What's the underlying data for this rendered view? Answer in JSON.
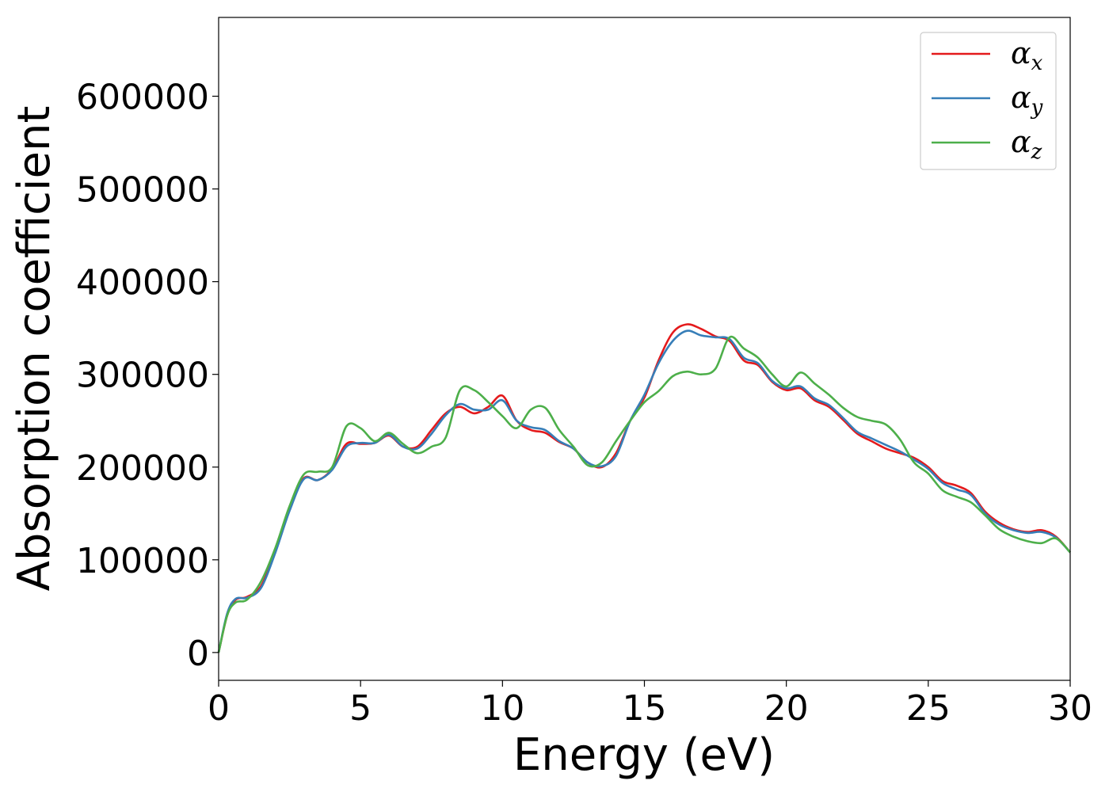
{
  "chart_data": {
    "type": "line",
    "xlabel": "Energy (eV)",
    "ylabel": "Absorption coefficient",
    "xlim": [
      0,
      30
    ],
    "ylim": [
      -30000,
      685000
    ],
    "grid": false,
    "legend_position": "top-right",
    "x_ticks": [
      0,
      5,
      10,
      15,
      20,
      25,
      30
    ],
    "x_tick_labels": [
      "0",
      "5",
      "10",
      "15",
      "20",
      "25",
      "30"
    ],
    "y_ticks": [
      0,
      100000,
      200000,
      300000,
      400000,
      500000,
      600000
    ],
    "y_tick_labels": [
      "0",
      "100000",
      "200000",
      "300000",
      "400000",
      "500000",
      "600000"
    ],
    "x": [
      0,
      0.3,
      0.6,
      1,
      1.5,
      2,
      2.5,
      3,
      3.5,
      4,
      4.5,
      5,
      5.5,
      6,
      6.5,
      7,
      7.5,
      8,
      8.5,
      9,
      9.5,
      10,
      10.5,
      11,
      11.5,
      12,
      12.5,
      13,
      13.5,
      14,
      14.5,
      15,
      15.5,
      16,
      16.5,
      17,
      17.5,
      18,
      18.5,
      19,
      19.5,
      20,
      20.5,
      21,
      21.5,
      22,
      22.5,
      23,
      23.5,
      24,
      24.5,
      25,
      25.5,
      26,
      26.5,
      27,
      27.5,
      28,
      28.5,
      29,
      29.5,
      30
    ],
    "series": [
      {
        "name_base": "α",
        "name_sub": "x",
        "color": "#e41a1c",
        "values": [
          0,
          40000,
          57000,
          60000,
          72000,
          110000,
          155000,
          188000,
          186000,
          198000,
          225000,
          225000,
          226000,
          234000,
          222000,
          222000,
          240000,
          258000,
          265000,
          258000,
          265000,
          277000,
          250000,
          240000,
          237000,
          227000,
          220000,
          205000,
          200000,
          215000,
          250000,
          275000,
          315000,
          345000,
          354000,
          349000,
          341000,
          336000,
          315000,
          310000,
          292000,
          283000,
          285000,
          272000,
          265000,
          251000,
          236000,
          228000,
          220000,
          215000,
          210000,
          200000,
          185000,
          180000,
          172000,
          152000,
          140000,
          133000,
          130000,
          132000,
          125000,
          108000
        ]
      },
      {
        "name_base": "α",
        "name_sub": "y",
        "color": "#377eb8",
        "values": [
          0,
          42000,
          58000,
          59000,
          70000,
          108000,
          153000,
          187000,
          186000,
          197000,
          222000,
          226000,
          226000,
          235000,
          222000,
          220000,
          236000,
          256000,
          268000,
          262000,
          262000,
          272000,
          250000,
          243000,
          240000,
          228000,
          220000,
          205000,
          201000,
          212000,
          250000,
          278000,
          312000,
          336000,
          347000,
          342000,
          340000,
          338000,
          318000,
          312000,
          293000,
          285000,
          287000,
          274000,
          267000,
          253000,
          238000,
          231000,
          224000,
          217000,
          208000,
          198000,
          183000,
          176000,
          170000,
          150000,
          138000,
          132000,
          129000,
          130000,
          124000,
          108000
        ]
      },
      {
        "name_base": "α",
        "name_sub": "z",
        "color": "#4daf4a",
        "values": [
          0,
          40000,
          54000,
          57000,
          77000,
          113000,
          158000,
          192000,
          195000,
          200000,
          244000,
          242000,
          228000,
          237000,
          225000,
          215000,
          222000,
          232000,
          283000,
          283000,
          270000,
          255000,
          242000,
          262000,
          264000,
          240000,
          222000,
          202000,
          205000,
          228000,
          250000,
          270000,
          282000,
          298000,
          303000,
          300000,
          306000,
          340000,
          328000,
          318000,
          300000,
          287000,
          302000,
          290000,
          278000,
          264000,
          254000,
          250000,
          246000,
          230000,
          205000,
          193000,
          175000,
          168000,
          162000,
          148000,
          133000,
          125000,
          120000,
          118000,
          123000,
          108000
        ]
      }
    ]
  }
}
